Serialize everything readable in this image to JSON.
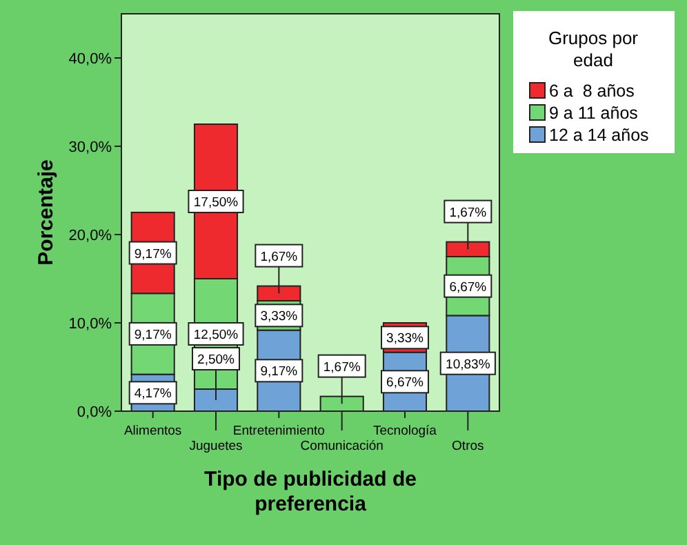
{
  "chart_data": {
    "type": "bar",
    "stacked": true,
    "xlabel": "Tipo de publicidad de preferencia",
    "ylabel": "Porcentaje",
    "legend_title": "Grupos por edad",
    "legend": "top right",
    "categories": [
      "Alimentos",
      "Juguetes",
      "Entretenimiento",
      "Comunicación",
      "Tecnología",
      "Otros"
    ],
    "ylim": [
      0,
      45
    ],
    "yticks": [
      {
        "value": 0,
        "label": "0,0%"
      },
      {
        "value": 10,
        "label": "10,0%"
      },
      {
        "value": 20,
        "label": "20,0%"
      },
      {
        "value": 30,
        "label": "30,0%"
      },
      {
        "value": 40,
        "label": "40,0%"
      }
    ],
    "series": [
      {
        "name": "12 a 14 años",
        "color": "#6fa3d8",
        "values": [
          4.17,
          2.5,
          9.17,
          null,
          6.67,
          10.83
        ],
        "value_labels": [
          "4,17%",
          "2,50%",
          "9,17%",
          null,
          "6,67%",
          "10,83%"
        ]
      },
      {
        "name": "9 a 11 años",
        "color": "#73d774",
        "values": [
          9.17,
          12.5,
          3.33,
          1.67,
          null,
          6.67
        ],
        "value_labels": [
          "9,17%",
          "12,50%",
          "3,33%",
          "1,67%",
          null,
          "6,67%"
        ]
      },
      {
        "name": "6 a  8 años",
        "color": "#ee2a2e",
        "values": [
          9.17,
          17.5,
          1.67,
          null,
          3.33,
          1.67
        ],
        "value_labels": [
          "9,17%",
          "17,50%",
          "1,67%",
          null,
          "3,33%",
          "1,67%"
        ]
      }
    ]
  }
}
